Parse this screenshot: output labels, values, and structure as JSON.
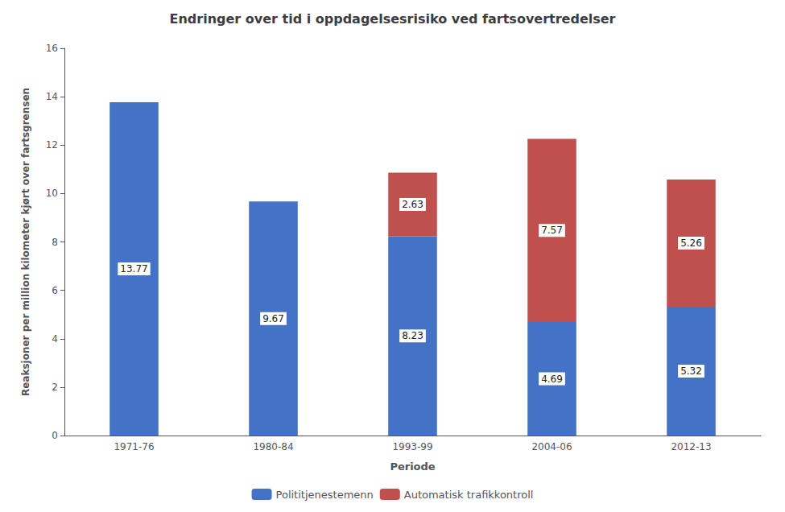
{
  "chart_data": {
    "type": "bar",
    "title": "Endringer over tid i oppdagelsesrisiko ved fartsovertredelser",
    "categories": [
      "1971-76",
      "1980-84",
      "1993-99",
      "2004-06",
      "2012-13"
    ],
    "series": [
      {
        "name": "Polititjenestemenn",
        "color": "#4472C4",
        "values": [
          13.77,
          9.67,
          8.23,
          4.69,
          5.32
        ]
      },
      {
        "name": "Automatisk trafikkontroll",
        "color": "#C0504D",
        "values": [
          0,
          0,
          2.63,
          7.57,
          5.26
        ]
      }
    ],
    "xlabel": "Periode",
    "ylabel": "Reaksjoner per million kilometer kjørt over fartsgrensen",
    "ylim": [
      0,
      16
    ],
    "yticks": [
      0,
      2,
      4,
      6,
      8,
      10,
      12,
      14,
      16
    ],
    "stacked": true,
    "data_labels": true,
    "grid": false,
    "legend": "bottom"
  }
}
